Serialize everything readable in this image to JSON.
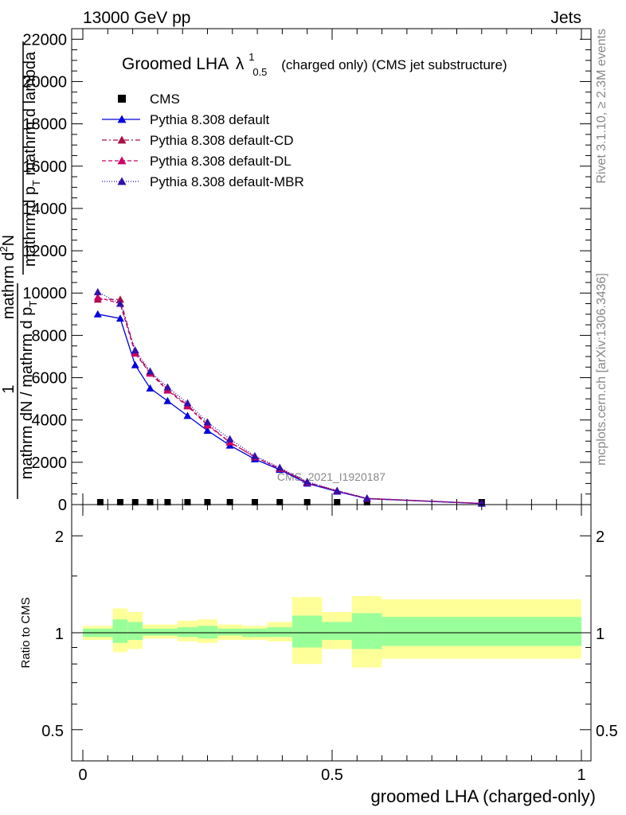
{
  "header": {
    "left": "13000 GeV pp",
    "right": "Jets"
  },
  "side": {
    "rivet": "Rivet 3.1.10, ≥ 2.3M events",
    "mcplots": "mcplots.cern.ch [arXiv:1306.3436]"
  },
  "watermark": "CMS_2021_I1920187",
  "chart_data": [
    {
      "type": "line",
      "title_main": "Groomed LHA",
      "title_lambda": "λ",
      "title_sup": "1",
      "title_sub": "0.5",
      "title_tail": "(charged only) (CMS jet substructure)",
      "ylabel_lines": [
        "mathrm d²N",
        "mathrm d p_T mathrm d lambda",
        "1",
        "mathrm dN / mathrm d p_T"
      ],
      "ylabel_display": {
        "num": "mathrm d",
        "num_sup": "2",
        "num_tail": "N",
        "den_a": "mathrm d p",
        "den_sub": "T",
        "den_b": " mathrm d lambda",
        "pref_top": "1",
        "pref_bottom": "mathrm dN / mathrm d p",
        "pref_sub": "T"
      },
      "xlim": [
        0,
        1
      ],
      "ylim": [
        0,
        22500
      ],
      "yticks": [
        0,
        2000,
        4000,
        6000,
        8000,
        10000,
        12000,
        14000,
        16000,
        18000,
        20000,
        22000
      ],
      "ytick_labels": [
        "0",
        "2000",
        "4000",
        "6000",
        "8000",
        "10000",
        "12000",
        "14000",
        "16000",
        "18000",
        "20000",
        "22000"
      ],
      "legend_position": "top-left",
      "series": [
        {
          "name": "CMS",
          "color": "#000000",
          "marker": "square",
          "x": [
            0.035,
            0.075,
            0.105,
            0.135,
            0.17,
            0.21,
            0.25,
            0.295,
            0.345,
            0.395,
            0.45,
            0.51,
            0.57,
            0.8
          ],
          "values": [
            0,
            0,
            0,
            0,
            0,
            0,
            0,
            0,
            0,
            0,
            0,
            0,
            0,
            0
          ]
        },
        {
          "name": "Pythia 8.308 default",
          "color": "#0000dd",
          "marker": "triangle",
          "dash": "",
          "x": [
            0.03,
            0.075,
            0.105,
            0.135,
            0.17,
            0.21,
            0.25,
            0.295,
            0.345,
            0.395,
            0.45,
            0.51,
            0.57,
            0.8
          ],
          "values": [
            9000,
            8800,
            6600,
            5500,
            4900,
            4200,
            3500,
            2800,
            2150,
            1650,
            1000,
            620,
            280,
            50
          ]
        },
        {
          "name": "Pythia 8.308 default-CD",
          "color": "#aa1144",
          "marker": "triangle",
          "dash": "6,3,2,3",
          "x": [
            0.03,
            0.075,
            0.105,
            0.135,
            0.17,
            0.21,
            0.25,
            0.295,
            0.345,
            0.395,
            0.45,
            0.51,
            0.57,
            0.8
          ],
          "values": [
            9700,
            9700,
            7200,
            6250,
            5450,
            4700,
            3800,
            2950,
            2250,
            1700,
            1050,
            650,
            290,
            55
          ]
        },
        {
          "name": "Pythia 8.308 default-DL",
          "color": "#cc0066",
          "marker": "triangle",
          "dash": "5,3",
          "x": [
            0.03,
            0.075,
            0.105,
            0.135,
            0.17,
            0.21,
            0.25,
            0.295,
            0.345,
            0.395,
            0.45,
            0.51,
            0.57,
            0.8
          ],
          "values": [
            9800,
            9500,
            7150,
            6200,
            5400,
            4650,
            3750,
            2950,
            2250,
            1700,
            1050,
            650,
            290,
            55
          ]
        },
        {
          "name": "Pythia 8.308 default-MBR",
          "color": "#3311aa",
          "marker": "triangle",
          "dash": "1,2",
          "x": [
            0.03,
            0.075,
            0.105,
            0.135,
            0.17,
            0.21,
            0.25,
            0.295,
            0.345,
            0.395,
            0.45,
            0.51,
            0.57,
            0.8
          ],
          "values": [
            10050,
            9500,
            7300,
            6300,
            5550,
            4800,
            3900,
            3100,
            2300,
            1750,
            1080,
            660,
            300,
            55
          ]
        }
      ]
    },
    {
      "type": "area",
      "ylabel": "Ratio to CMS",
      "xlabel": "groomed LHA (charged-only)",
      "xlim": [
        0,
        1
      ],
      "xticks": [
        0,
        0.5,
        1
      ],
      "xtick_labels": [
        "0",
        "0.5",
        "1"
      ],
      "ylim": [
        0.4,
        2.5
      ],
      "log_y": true,
      "yticks": [
        0.5,
        1,
        2
      ],
      "ytick_labels": [
        "0.5",
        "1",
        "2"
      ],
      "bins": [
        {
          "lo": 0.0,
          "hi": 0.06,
          "inner": [
            0.97,
            1.03
          ],
          "outer": [
            0.95,
            1.05
          ]
        },
        {
          "lo": 0.06,
          "hi": 0.09,
          "inner": [
            0.93,
            1.1
          ],
          "outer": [
            0.87,
            1.19
          ]
        },
        {
          "lo": 0.09,
          "hi": 0.12,
          "inner": [
            0.95,
            1.08
          ],
          "outer": [
            0.89,
            1.16
          ]
        },
        {
          "lo": 0.12,
          "hi": 0.19,
          "inner": [
            0.98,
            1.03
          ],
          "outer": [
            0.96,
            1.06
          ]
        },
        {
          "lo": 0.19,
          "hi": 0.23,
          "inner": [
            0.97,
            1.04
          ],
          "outer": [
            0.94,
            1.09
          ]
        },
        {
          "lo": 0.23,
          "hi": 0.27,
          "inner": [
            0.96,
            1.05
          ],
          "outer": [
            0.93,
            1.1
          ]
        },
        {
          "lo": 0.27,
          "hi": 0.32,
          "inner": [
            0.98,
            1.03
          ],
          "outer": [
            0.95,
            1.06
          ]
        },
        {
          "lo": 0.32,
          "hi": 0.37,
          "inner": [
            0.97,
            1.03
          ],
          "outer": [
            0.95,
            1.05
          ]
        },
        {
          "lo": 0.37,
          "hi": 0.42,
          "inner": [
            0.97,
            1.04
          ],
          "outer": [
            0.94,
            1.08
          ]
        },
        {
          "lo": 0.42,
          "hi": 0.48,
          "inner": [
            0.9,
            1.13
          ],
          "outer": [
            0.8,
            1.29
          ]
        },
        {
          "lo": 0.48,
          "hi": 0.54,
          "inner": [
            0.95,
            1.08
          ],
          "outer": [
            0.89,
            1.16
          ]
        },
        {
          "lo": 0.54,
          "hi": 0.6,
          "inner": [
            0.89,
            1.15
          ],
          "outer": [
            0.78,
            1.3
          ]
        },
        {
          "lo": 0.6,
          "hi": 1.0,
          "inner": [
            0.91,
            1.12
          ],
          "outer": [
            0.83,
            1.27
          ]
        }
      ]
    }
  ]
}
